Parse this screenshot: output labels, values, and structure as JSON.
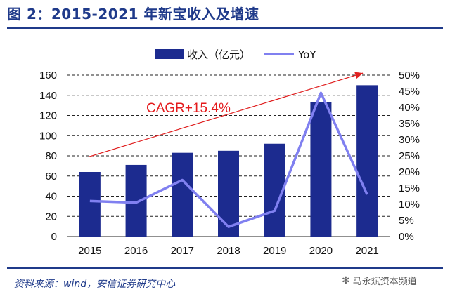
{
  "figure": {
    "title": "图 2：2015-2021 年新宝收入及增速",
    "source": "资料来源：wind，安信证券研究中心",
    "watermark": "马永斌资本频道",
    "watermark_icon": "wechat-icon"
  },
  "colors": {
    "title": "#1f3a8a",
    "bar": "#1c2b8f",
    "line": "#8080f0",
    "arrow": "#e02020",
    "annotation": "#e41a1c"
  },
  "chart_data": {
    "type": "bar",
    "categories": [
      "2015",
      "2016",
      "2017",
      "2018",
      "2019",
      "2020",
      "2021"
    ],
    "series": [
      {
        "name": "收入（亿元）",
        "type": "bar",
        "axis": "left",
        "values": [
          64,
          71,
          83,
          85,
          92,
          133,
          150
        ]
      },
      {
        "name": "YoY",
        "type": "line",
        "axis": "right",
        "values": [
          0.11,
          0.105,
          0.175,
          0.03,
          0.08,
          0.445,
          0.13
        ]
      }
    ],
    "y_left": {
      "min": 0,
      "max": 160,
      "ticks": [
        "0",
        "20",
        "40",
        "60",
        "80",
        "100",
        "120",
        "140",
        "160"
      ]
    },
    "y_right": {
      "min": 0,
      "max": 0.5,
      "ticks": [
        "0%",
        "5%",
        "10%",
        "15%",
        "20%",
        "25%",
        "30%",
        "35%",
        "40%",
        "45%",
        "50%"
      ]
    },
    "annotation": "CAGR+15.4%",
    "legend_position": "top",
    "grid": "dashed horizontal"
  }
}
